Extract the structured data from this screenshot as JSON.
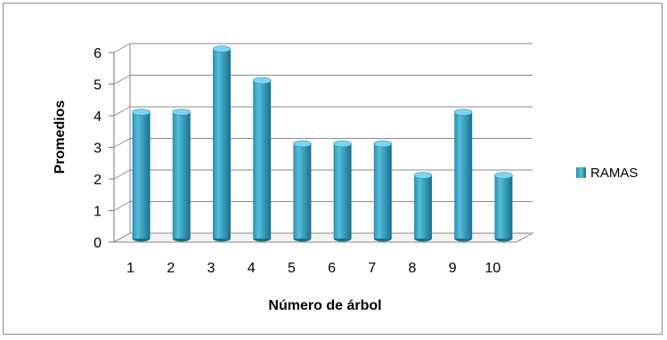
{
  "chart_data": {
    "type": "bar",
    "style": "3d-cylinder",
    "categories": [
      "1",
      "2",
      "3",
      "4",
      "5",
      "6",
      "7",
      "8",
      "9",
      "10"
    ],
    "series": [
      {
        "name": "RAMAS",
        "values": [
          4,
          4,
          6,
          5,
          3,
          3,
          3,
          2,
          4,
          2
        ],
        "color": "#3ba3c2"
      }
    ],
    "xlabel": "Número de árbol",
    "ylabel": "Promedios",
    "ylim": [
      0,
      6
    ],
    "yticks": [
      "0",
      "1",
      "2",
      "3",
      "4",
      "5",
      "6"
    ],
    "grid": true,
    "legend_position": "right"
  }
}
